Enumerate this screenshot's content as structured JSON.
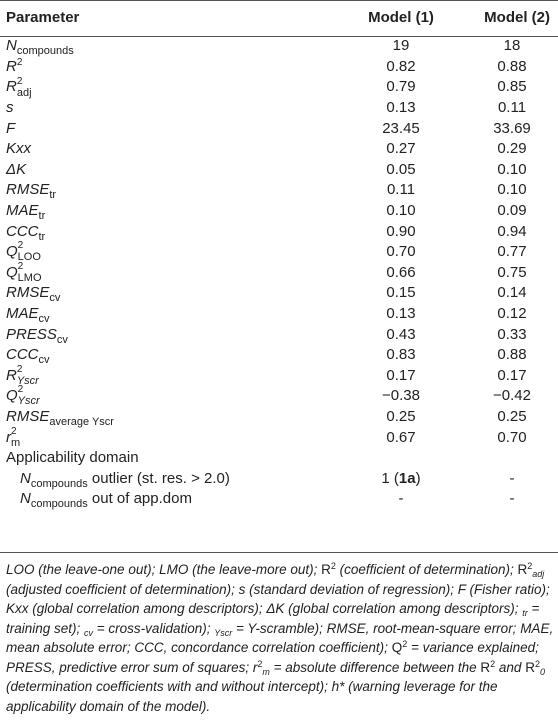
{
  "header": {
    "param": "Parameter",
    "model1": "Model (1)",
    "model2": "Model (2)"
  },
  "rows": [
    {
      "main": "N",
      "sub": "compounds",
      "m1": "19",
      "m2": "18"
    },
    {
      "main": "R",
      "sup": "2",
      "m1": "0.82",
      "m2": "0.88"
    },
    {
      "main": "R",
      "sup": "2",
      "sub": "adj",
      "m1": "0.79",
      "m2": "0.85"
    },
    {
      "main": "s",
      "m1": "0.13",
      "m2": "0.11"
    },
    {
      "main": "F",
      "m1": "23.45",
      "m2": "33.69"
    },
    {
      "main": "Kxx",
      "m1": "0.27",
      "m2": "0.29"
    },
    {
      "main": "ΔK",
      "m1": "0.05",
      "m2": "0.10"
    },
    {
      "main": "RMSE",
      "sub": "tr",
      "m1": "0.11",
      "m2": "0.10"
    },
    {
      "main": "MAE",
      "sub": "tr",
      "m1": "0.10",
      "m2": "0.09"
    },
    {
      "main": "CCC",
      "sub": "tr",
      "m1": "0.90",
      "m2": "0.94"
    },
    {
      "main": "Q",
      "sup": "2",
      "sub": "LOO",
      "m1": "0.70",
      "m2": "0.77"
    },
    {
      "main": "Q",
      "sup": "2",
      "sub": "LMO",
      "m1": "0.66",
      "m2": "0.75"
    },
    {
      "main": "RMSE",
      "sub": "cv",
      "m1": "0.15",
      "m2": "0.14"
    },
    {
      "main": "MAE",
      "sub": "cv",
      "m1": "0.13",
      "m2": "0.12"
    },
    {
      "main": "PRESS",
      "sub": "cv",
      "m1": "0.43",
      "m2": "0.33"
    },
    {
      "main": "CCC",
      "sub": "cv",
      "m1": "0.83",
      "m2": "0.88"
    },
    {
      "main": "R",
      "sup": "2",
      "sub": "Yscr",
      "m1": "0.17",
      "m2": "0.17"
    },
    {
      "main": "Q",
      "sup": "2",
      "sub": "Yscr",
      "m1": "−0.38",
      "m2": "−0.42"
    },
    {
      "main": "RMSE",
      "sub": "average Yscr",
      "m1": "0.25",
      "m2": "0.25"
    },
    {
      "main": "r",
      "sup": "2",
      "sub": "m",
      "m1": "0.67",
      "m2": "0.70"
    }
  ],
  "applicability": {
    "title": "Applicability domain",
    "outlier": {
      "main": "N",
      "sub": "compounds",
      "tail": " outlier (st. res. > 2.0)",
      "m1_pre": "1 (",
      "m1_bold": "1a",
      "m1_post": ")",
      "m2": "-"
    },
    "outdom": {
      "main": "N",
      "sub": "compounds",
      "tail": " out of app.dom",
      "m1": "-",
      "m2": "-"
    }
  },
  "footnote": {
    "p1": "LOO (the leave-one out); LMO (the leave-more out); ",
    "p2": "R",
    "p3": "2",
    "p4": " (coefficient of determination); ",
    "p5": "R",
    "p6": "2",
    "p7": "adj",
    "p8": " (adjusted coefficient of determination); ",
    "p9": "s (standard deviation of regression); F (Fisher ratio); ",
    "p10": "Kxx (global correlation among descriptors); ",
    "p11": "ΔK (global correlation among descriptors); ",
    "p12": "tr",
    "p13": " = training set); ",
    "p14": "cv",
    "p15": " = cross-validation); ",
    "p16": "Yscr",
    "p17": " = Y-scramble); ",
    "p18": "RMSE, root-mean-square error; ",
    "p19": "MAE, mean absolute error; CCC, concordance correlation coefficient); ",
    "p20": "Q",
    "p21": "2",
    "p22": " = variance explained; PRESS, predictive error sum of squares; ",
    "p23": "r",
    "p24": "2",
    "p25": "m",
    "p26": " = absolute difference between the ",
    "p27": "R",
    "p28": "2",
    "p29": " and ",
    "p30": "R",
    "p31": "2",
    "p32": "0",
    "p33": " (determination coefficients with and without intercept); ",
    "p34": "h* (warning leverage for the applicability domain of the model)."
  }
}
